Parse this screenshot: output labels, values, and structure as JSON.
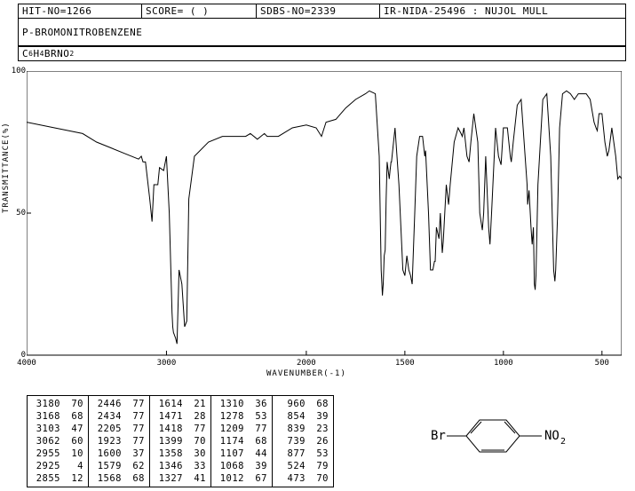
{
  "header": {
    "hit_no": "HIT-NO=1266",
    "score": "SCORE=  (  )",
    "sdbs": "SDBS-NO=2339",
    "ir": "IR-NIDA-25496 : NUJOL MULL",
    "compound": "P-BROMONITROBENZENE",
    "formula_plain": "C6H4BRNO2"
  },
  "chart": {
    "ylabel": "TRANSMITTANCE(%)",
    "xlabel": "WAVENUMBER(-1)",
    "x_range": [
      4000,
      400
    ],
    "y_range": [
      0,
      100
    ],
    "y_ticks": [
      0,
      50,
      100
    ],
    "x_ticks": [
      4000,
      3000,
      2000,
      1500,
      1000,
      500
    ],
    "line_color": "#000000",
    "bg_color": "#ffffff",
    "border_color": "#000000",
    "spectrum": [
      [
        4000,
        82
      ],
      [
        3800,
        80
      ],
      [
        3600,
        78
      ],
      [
        3500,
        75
      ],
      [
        3400,
        73
      ],
      [
        3300,
        71
      ],
      [
        3200,
        69
      ],
      [
        3180,
        70
      ],
      [
        3168,
        68
      ],
      [
        3150,
        68
      ],
      [
        3120,
        55
      ],
      [
        3103,
        47
      ],
      [
        3090,
        60
      ],
      [
        3062,
        60
      ],
      [
        3050,
        66
      ],
      [
        3020,
        65
      ],
      [
        3000,
        70
      ],
      [
        2980,
        50
      ],
      [
        2960,
        15
      ],
      [
        2955,
        10
      ],
      [
        2950,
        8
      ],
      [
        2935,
        6
      ],
      [
        2925,
        4
      ],
      [
        2910,
        30
      ],
      [
        2890,
        25
      ],
      [
        2870,
        10
      ],
      [
        2855,
        12
      ],
      [
        2840,
        55
      ],
      [
        2800,
        70
      ],
      [
        2700,
        75
      ],
      [
        2600,
        77
      ],
      [
        2500,
        77
      ],
      [
        2446,
        77
      ],
      [
        2434,
        77
      ],
      [
        2400,
        78
      ],
      [
        2350,
        76
      ],
      [
        2325,
        77
      ],
      [
        2300,
        78
      ],
      [
        2280,
        77
      ],
      [
        2205,
        77
      ],
      [
        2200,
        77
      ],
      [
        2100,
        80
      ],
      [
        2000,
        81
      ],
      [
        1950,
        80
      ],
      [
        1923,
        77
      ],
      [
        1900,
        82
      ],
      [
        1850,
        83
      ],
      [
        1800,
        87
      ],
      [
        1750,
        90
      ],
      [
        1700,
        92
      ],
      [
        1680,
        93
      ],
      [
        1650,
        92
      ],
      [
        1630,
        70
      ],
      [
        1620,
        30
      ],
      [
        1614,
        21
      ],
      [
        1610,
        25
      ],
      [
        1605,
        35
      ],
      [
        1600,
        37
      ],
      [
        1595,
        55
      ],
      [
        1590,
        68
      ],
      [
        1579,
        62
      ],
      [
        1575,
        65
      ],
      [
        1570,
        68
      ],
      [
        1568,
        68
      ],
      [
        1550,
        80
      ],
      [
        1530,
        60
      ],
      [
        1510,
        30
      ],
      [
        1500,
        28
      ],
      [
        1490,
        35
      ],
      [
        1480,
        30
      ],
      [
        1471,
        28
      ],
      [
        1463,
        25
      ],
      [
        1450,
        50
      ],
      [
        1440,
        70
      ],
      [
        1425,
        77
      ],
      [
        1418,
        77
      ],
      [
        1410,
        77
      ],
      [
        1399,
        70
      ],
      [
        1395,
        72
      ],
      [
        1380,
        50
      ],
      [
        1370,
        30
      ],
      [
        1358,
        30
      ],
      [
        1350,
        33
      ],
      [
        1346,
        33
      ],
      [
        1340,
        45
      ],
      [
        1327,
        41
      ],
      [
        1320,
        50
      ],
      [
        1310,
        36
      ],
      [
        1305,
        40
      ],
      [
        1290,
        60
      ],
      [
        1278,
        53
      ],
      [
        1270,
        60
      ],
      [
        1250,
        75
      ],
      [
        1230,
        80
      ],
      [
        1215,
        78
      ],
      [
        1209,
        77
      ],
      [
        1200,
        80
      ],
      [
        1185,
        70
      ],
      [
        1174,
        68
      ],
      [
        1165,
        75
      ],
      [
        1150,
        85
      ],
      [
        1130,
        75
      ],
      [
        1120,
        50
      ],
      [
        1107,
        44
      ],
      [
        1100,
        50
      ],
      [
        1090,
        70
      ],
      [
        1075,
        45
      ],
      [
        1068,
        39
      ],
      [
        1060,
        50
      ],
      [
        1040,
        80
      ],
      [
        1025,
        70
      ],
      [
        1012,
        67
      ],
      [
        1000,
        80
      ],
      [
        980,
        80
      ],
      [
        965,
        70
      ],
      [
        960,
        68
      ],
      [
        950,
        75
      ],
      [
        930,
        88
      ],
      [
        910,
        90
      ],
      [
        880,
        60
      ],
      [
        877,
        53
      ],
      [
        870,
        58
      ],
      [
        860,
        45
      ],
      [
        854,
        39
      ],
      [
        848,
        45
      ],
      [
        843,
        25
      ],
      [
        839,
        23
      ],
      [
        835,
        28
      ],
      [
        825,
        60
      ],
      [
        800,
        90
      ],
      [
        780,
        92
      ],
      [
        760,
        70
      ],
      [
        745,
        30
      ],
      [
        739,
        26
      ],
      [
        735,
        30
      ],
      [
        725,
        50
      ],
      [
        715,
        80
      ],
      [
        700,
        92
      ],
      [
        680,
        93
      ],
      [
        660,
        92
      ],
      [
        640,
        90
      ],
      [
        620,
        92
      ],
      [
        600,
        92
      ],
      [
        580,
        92
      ],
      [
        560,
        90
      ],
      [
        540,
        82
      ],
      [
        530,
        80
      ],
      [
        524,
        79
      ],
      [
        515,
        85
      ],
      [
        500,
        85
      ],
      [
        485,
        75
      ],
      [
        473,
        70
      ],
      [
        465,
        72
      ],
      [
        450,
        80
      ],
      [
        430,
        70
      ],
      [
        420,
        62
      ],
      [
        410,
        63
      ],
      [
        400,
        62
      ]
    ]
  },
  "peak_table": {
    "cols": [
      [
        [
          3180,
          70
        ],
        [
          3168,
          68
        ],
        [
          3103,
          47
        ],
        [
          3062,
          60
        ],
        [
          2955,
          10
        ],
        [
          2925,
          4
        ],
        [
          2855,
          12
        ]
      ],
      [
        [
          2446,
          77
        ],
        [
          2434,
          77
        ],
        [
          2205,
          77
        ],
        [
          1923,
          77
        ],
        [
          1600,
          37
        ],
        [
          1579,
          62
        ],
        [
          1568,
          68
        ]
      ],
      [
        [
          1614,
          21
        ],
        [
          1471,
          28
        ],
        [
          1418,
          77
        ],
        [
          1399,
          70
        ],
        [
          1358,
          30
        ],
        [
          1346,
          33
        ],
        [
          1327,
          41
        ]
      ],
      [
        [
          1310,
          36
        ],
        [
          1278,
          53
        ],
        [
          1209,
          77
        ],
        [
          1174,
          68
        ],
        [
          1107,
          44
        ],
        [
          1068,
          39
        ],
        [
          1012,
          67
        ]
      ],
      [
        [
          960,
          68
        ],
        [
          854,
          39
        ],
        [
          839,
          23
        ],
        [
          739,
          26
        ],
        [
          877,
          53
        ],
        [
          524,
          79
        ],
        [
          473,
          70
        ]
      ]
    ]
  },
  "molecule": {
    "left_label": "Br",
    "right_label": "NO",
    "right_sub": "2"
  }
}
